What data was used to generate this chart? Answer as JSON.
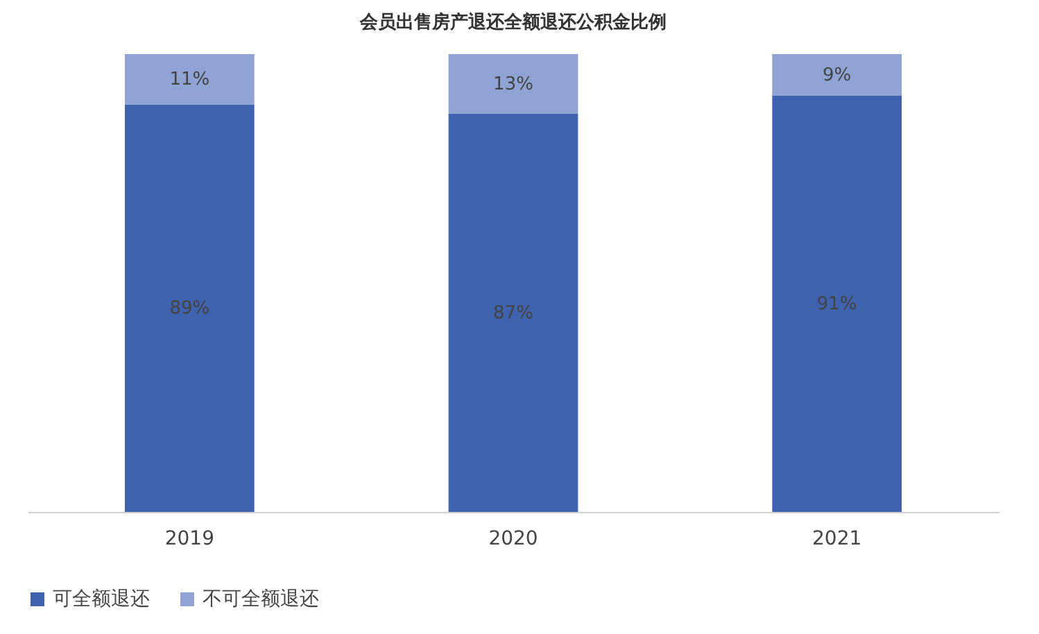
{
  "chart_data": {
    "type": "bar",
    "title": "会员出售房产退还全额退还公积金比例",
    "categories": [
      "2019",
      "2020",
      "2021"
    ],
    "stacked": true,
    "legend": "bottom",
    "series": [
      {
        "name": "可全额退还",
        "color": "#3f63ae",
        "values": [
          89,
          87,
          91
        ],
        "value_labels": [
          "89%",
          "87%",
          "91%"
        ]
      },
      {
        "name": "不可全额退还",
        "color": "#8fa3d5",
        "values": [
          11,
          13,
          9
        ],
        "value_labels": [
          "11%",
          "13%",
          "9%"
        ]
      }
    ]
  }
}
